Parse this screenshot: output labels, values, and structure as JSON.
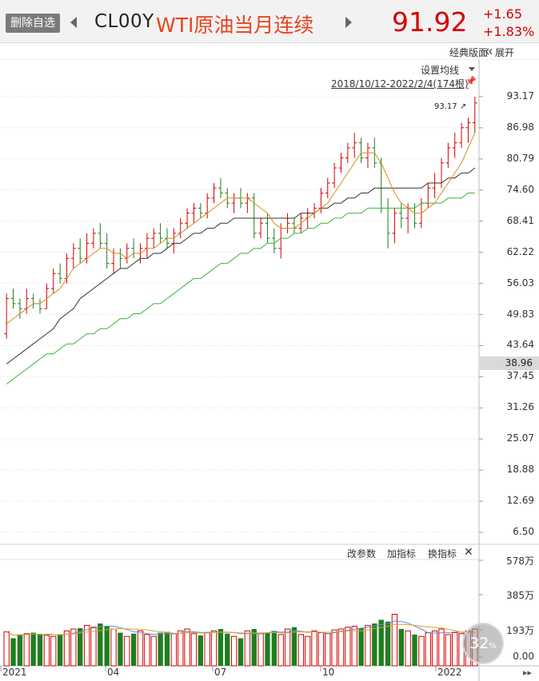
{
  "header": {
    "remove_watchlist_label": "删除自选",
    "code": "CL00Y",
    "name": "WTI原油当月连续",
    "price": "91.92",
    "change": "+1.65",
    "change_pct": "+1.83%"
  },
  "toolbar": {
    "classic_label": "经典版面",
    "expand_label": "展开",
    "set_ma_label": "设置均线",
    "range_label": "2018/10/12-2022/2/4(174根)"
  },
  "indicator_bar": {
    "params_label": "改参数",
    "add_label": "加指标",
    "switch_label": "换指标"
  },
  "price_axis": [
    "93.17",
    "86.98",
    "80.79",
    "74.60",
    "68.41",
    "62.22",
    "56.03",
    "49.83",
    "43.64",
    "37.45",
    "31.26",
    "25.07",
    "18.88",
    "12.69",
    "6.50"
  ],
  "current_marker": "38.96",
  "high_marker": "93.17",
  "volume_axis": [
    "578万",
    "385万",
    "193万",
    "0.00"
  ],
  "time_axis": [
    "2021",
    "04",
    "07",
    "10",
    "2022"
  ],
  "zoom_percent": "32",
  "zoom_unit": "%",
  "colors": {
    "up": "#d40000",
    "down": "#1e7f1e",
    "ma_short": "#d98c1f",
    "ma_mid": "#333333",
    "ma_long": "#3cb43c",
    "vol_ma_a": "#5a8fd8",
    "vol_ma_b": "#e0a030"
  },
  "chart_data": {
    "type": "candlestick",
    "y_range": [
      6.5,
      93.17
    ],
    "volume_range": [
      0,
      578
    ],
    "volume_unit": "万",
    "candles": [
      [
        46,
        54,
        45,
        53
      ],
      [
        53,
        55,
        51,
        52
      ],
      [
        52,
        53,
        49,
        51
      ],
      [
        51,
        55,
        50,
        53
      ],
      [
        53,
        54,
        51,
        52
      ],
      [
        52,
        53,
        50,
        51
      ],
      [
        51,
        56,
        51,
        55
      ],
      [
        55,
        59,
        54,
        58
      ],
      [
        58,
        60,
        56,
        57
      ],
      [
        57,
        62,
        56,
        61
      ],
      [
        61,
        64,
        59,
        63
      ],
      [
        63,
        65,
        60,
        61
      ],
      [
        61,
        66,
        60,
        64
      ],
      [
        64,
        67,
        63,
        66
      ],
      [
        66,
        68,
        63,
        64
      ],
      [
        64,
        66,
        59,
        60
      ],
      [
        60,
        63,
        58,
        62
      ],
      [
        62,
        63,
        59,
        61
      ],
      [
        61,
        64,
        60,
        63
      ],
      [
        63,
        65,
        61,
        62
      ],
      [
        62,
        64,
        60,
        63
      ],
      [
        63,
        66,
        61,
        65
      ],
      [
        65,
        67,
        63,
        66
      ],
      [
        66,
        68,
        64,
        65
      ],
      [
        65,
        67,
        63,
        64
      ],
      [
        64,
        67,
        62,
        66
      ],
      [
        66,
        69,
        65,
        68
      ],
      [
        68,
        71,
        67,
        70
      ],
      [
        70,
        72,
        68,
        71
      ],
      [
        71,
        72,
        69,
        70
      ],
      [
        70,
        74,
        69,
        73
      ],
      [
        73,
        76,
        72,
        75
      ],
      [
        75,
        77,
        73,
        74
      ],
      [
        74,
        75,
        71,
        72
      ],
      [
        72,
        74,
        70,
        73
      ],
      [
        73,
        75,
        71,
        72
      ],
      [
        72,
        74,
        70,
        73
      ],
      [
        73,
        74,
        65,
        66
      ],
      [
        66,
        69,
        65,
        68
      ],
      [
        68,
        70,
        64,
        65
      ],
      [
        65,
        67,
        62,
        63
      ],
      [
        63,
        68,
        61,
        67
      ],
      [
        67,
        70,
        66,
        68
      ],
      [
        68,
        69,
        66,
        67
      ],
      [
        67,
        70,
        66,
        69
      ],
      [
        69,
        71,
        67,
        70
      ],
      [
        70,
        72,
        69,
        71
      ],
      [
        71,
        75,
        70,
        74
      ],
      [
        74,
        77,
        73,
        76
      ],
      [
        76,
        80,
        75,
        79
      ],
      [
        79,
        82,
        78,
        81
      ],
      [
        81,
        84,
        80,
        83
      ],
      [
        83,
        86,
        81,
        84
      ],
      [
        84,
        85,
        80,
        81
      ],
      [
        81,
        84,
        79,
        83
      ],
      [
        83,
        85,
        79,
        80
      ],
      [
        80,
        81,
        70,
        71
      ],
      [
        71,
        73,
        63,
        66
      ],
      [
        66,
        71,
        64,
        70
      ],
      [
        70,
        72,
        67,
        69
      ],
      [
        69,
        72,
        66,
        71
      ],
      [
        71,
        72,
        67,
        68
      ],
      [
        68,
        73,
        67,
        72
      ],
      [
        72,
        76,
        71,
        75
      ],
      [
        75,
        78,
        73,
        76
      ],
      [
        76,
        81,
        75,
        80
      ],
      [
        80,
        84,
        79,
        83
      ],
      [
        83,
        86,
        81,
        84
      ],
      [
        84,
        88,
        83,
        87
      ],
      [
        87,
        89,
        84,
        88
      ],
      [
        88,
        93.17,
        86,
        91.92
      ]
    ],
    "ma_short": [
      48,
      49,
      50,
      51,
      52,
      52,
      53,
      54,
      55,
      57,
      59,
      60,
      61,
      62,
      63,
      63,
      62,
      62,
      61,
      62,
      62,
      63,
      63,
      64,
      65,
      65,
      66,
      67,
      68,
      69,
      70,
      71,
      72,
      73,
      73,
      73,
      73,
      72,
      71,
      70,
      68,
      67,
      67,
      67,
      68,
      69,
      70,
      71,
      72,
      74,
      76,
      78,
      80,
      82,
      82,
      82,
      80,
      77,
      74,
      72,
      71,
      70,
      70,
      71,
      72,
      74,
      76,
      78,
      80,
      83,
      86
    ],
    "ma_mid": [
      40,
      41,
      42,
      43,
      44,
      45,
      46,
      47,
      49,
      50,
      51,
      53,
      54,
      55,
      56,
      57,
      58,
      59,
      59,
      60,
      61,
      61,
      62,
      62,
      63,
      64,
      64,
      65,
      66,
      66,
      67,
      67,
      68,
      68,
      69,
      69,
      69,
      69,
      69,
      69,
      69,
      69,
      69,
      69,
      70,
      70,
      70,
      71,
      71,
      72,
      72,
      73,
      73,
      74,
      74,
      75,
      75,
      75,
      75,
      75,
      75,
      75,
      75,
      76,
      76,
      76,
      77,
      77,
      78,
      78,
      79
    ],
    "ma_long": [
      36,
      37,
      38,
      39,
      40,
      41,
      42,
      42,
      43,
      44,
      44,
      45,
      46,
      46,
      47,
      47,
      48,
      49,
      49,
      50,
      50,
      51,
      52,
      52,
      53,
      54,
      55,
      56,
      57,
      57,
      58,
      59,
      60,
      60,
      61,
      62,
      62,
      63,
      63,
      64,
      64,
      65,
      65,
      66,
      66,
      67,
      67,
      68,
      68,
      69,
      69,
      70,
      70,
      70,
      71,
      71,
      71,
      71,
      71,
      71,
      71,
      71,
      72,
      72,
      72,
      72,
      73,
      73,
      73,
      74,
      74
    ],
    "volumes": [
      185,
      150,
      170,
      175,
      180,
      172,
      165,
      160,
      170,
      190,
      200,
      205,
      220,
      210,
      230,
      215,
      200,
      180,
      160,
      175,
      190,
      170,
      160,
      180,
      185,
      175,
      190,
      200,
      175,
      165,
      180,
      190,
      200,
      175,
      160,
      150,
      190,
      200,
      175,
      180,
      190,
      170,
      200,
      210,
      170,
      160,
      190,
      180,
      175,
      195,
      200,
      210,
      215,
      205,
      220,
      230,
      250,
      240,
      280,
      200,
      190,
      170,
      160,
      180,
      190,
      200,
      170,
      180,
      175,
      190,
      200
    ]
  }
}
